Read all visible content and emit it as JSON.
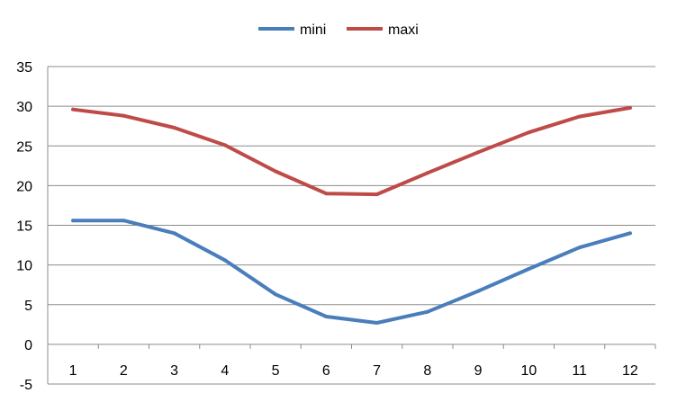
{
  "chart_data": {
    "type": "line",
    "title": "",
    "xlabel": "",
    "ylabel": "",
    "categories": [
      "1",
      "2",
      "3",
      "4",
      "5",
      "6",
      "7",
      "8",
      "9",
      "10",
      "11",
      "12"
    ],
    "ylim": [
      -5,
      35
    ],
    "yticks": [
      35,
      30,
      25,
      20,
      15,
      10,
      5,
      0,
      -5
    ],
    "grid": true,
    "legend_position": "top",
    "series": [
      {
        "name": "mini",
        "color": "#4a7ebb",
        "values": [
          15.6,
          15.6,
          14.0,
          10.6,
          6.3,
          3.5,
          2.7,
          4.1,
          6.7,
          9.5,
          12.2,
          14.0
        ]
      },
      {
        "name": "maxi",
        "color": "#be4b48",
        "values": [
          29.6,
          28.8,
          27.3,
          25.1,
          21.8,
          19.0,
          18.9,
          21.6,
          24.2,
          26.7,
          28.7,
          29.8
        ]
      }
    ]
  }
}
